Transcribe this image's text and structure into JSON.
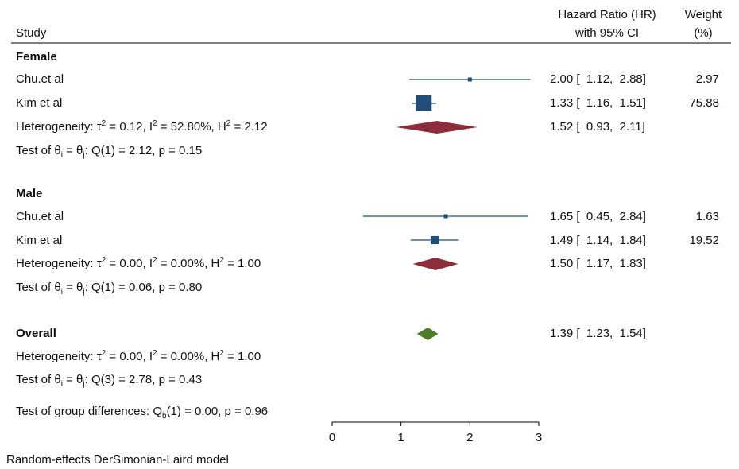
{
  "header": {
    "study_label": "Study",
    "hr_label_line1": "Hazard Ratio (HR)",
    "hr_label_line2": "with 95% CI",
    "weight_label_line1": "Weight",
    "weight_label_line2": "(%)"
  },
  "groups": {
    "female": {
      "title": "Female",
      "studies": [
        {
          "name": "Chu.et al",
          "ci_text": "2.00 [  1.12,  2.88]",
          "weight": "2.97"
        },
        {
          "name": "Kim et al",
          "ci_text": "1.33 [  1.16,  1.51]",
          "weight": "75.88"
        }
      ],
      "heterogeneity": {
        "prefix": "Heterogeneity: τ",
        "tau_sup": "2",
        "mid1": " = 0.12, I",
        "i_sup": "2",
        "mid2": " = 52.80%, H",
        "h_sup": "2",
        "tail": " = 2.12"
      },
      "pooled_ci_text": "1.52 [  0.93,  2.11]",
      "test": {
        "prefix": "Test of θ",
        "sub_i": "i",
        "mid": " = θ",
        "sub_j": "j",
        "tail": ": Q(1) = 2.12, p = 0.15"
      }
    },
    "male": {
      "title": "Male",
      "studies": [
        {
          "name": "Chu.et al",
          "ci_text": "1.65 [  0.45,  2.84]",
          "weight": "1.63"
        },
        {
          "name": "Kim et al",
          "ci_text": "1.49 [  1.14,  1.84]",
          "weight": "19.52"
        }
      ],
      "heterogeneity": {
        "prefix": "Heterogeneity: τ",
        "tau_sup": "2",
        "mid1": " = 0.00, I",
        "i_sup": "2",
        "mid2": " = 0.00%, H",
        "h_sup": "2",
        "tail": " = 1.00"
      },
      "pooled_ci_text": "1.50 [  1.17,  1.83]",
      "test": {
        "prefix": "Test of θ",
        "sub_i": "i",
        "mid": " = θ",
        "sub_j": "j",
        "tail": ": Q(1) = 0.06, p = 0.80"
      }
    }
  },
  "overall": {
    "title": "Overall",
    "ci_text": "1.39 [  1.23,  1.54]",
    "heterogeneity": {
      "prefix": "Heterogeneity: τ",
      "tau_sup": "2",
      "mid1": " = 0.00, I",
      "i_sup": "2",
      "mid2": " = 0.00%, H",
      "h_sup": "2",
      "tail": " = 1.00"
    },
    "test": {
      "prefix": "Test of θ",
      "sub_i": "i",
      "mid": " = θ",
      "sub_j": "j",
      "tail": ": Q(3) = 2.78, p = 0.43"
    },
    "group_diff": {
      "prefix": "Test of group differences: Q",
      "sub_b": "b",
      "tail": "(1) = 0.00, p = 0.96"
    }
  },
  "footnote": "Random-effects DerSimonian-Laird model",
  "chart_data": {
    "type": "forest",
    "x_ticks": [
      "0",
      "1",
      "2",
      "3"
    ],
    "xlim": [
      0,
      3
    ],
    "colors": {
      "study": "#1f4e79",
      "subgroup_diamond": "#8b2d3a",
      "overall_diamond": "#4f7a28",
      "axis": "#000000"
    },
    "rows": [
      {
        "id": "female-chu",
        "hr": 2.0,
        "lo": 1.12,
        "hi": 2.88,
        "weight": 2.97,
        "kind": "study"
      },
      {
        "id": "female-kim",
        "hr": 1.33,
        "lo": 1.16,
        "hi": 1.51,
        "weight": 75.88,
        "kind": "study"
      },
      {
        "id": "female-pooled",
        "hr": 1.52,
        "lo": 0.93,
        "hi": 2.11,
        "kind": "subgroup"
      },
      {
        "id": "male-chu",
        "hr": 1.65,
        "lo": 0.45,
        "hi": 2.84,
        "weight": 1.63,
        "kind": "study"
      },
      {
        "id": "male-kim",
        "hr": 1.49,
        "lo": 1.14,
        "hi": 1.84,
        "weight": 19.52,
        "kind": "study"
      },
      {
        "id": "male-pooled",
        "hr": 1.5,
        "lo": 1.17,
        "hi": 1.83,
        "kind": "subgroup"
      },
      {
        "id": "overall",
        "hr": 1.39,
        "lo": 1.23,
        "hi": 1.54,
        "kind": "overall"
      }
    ]
  }
}
